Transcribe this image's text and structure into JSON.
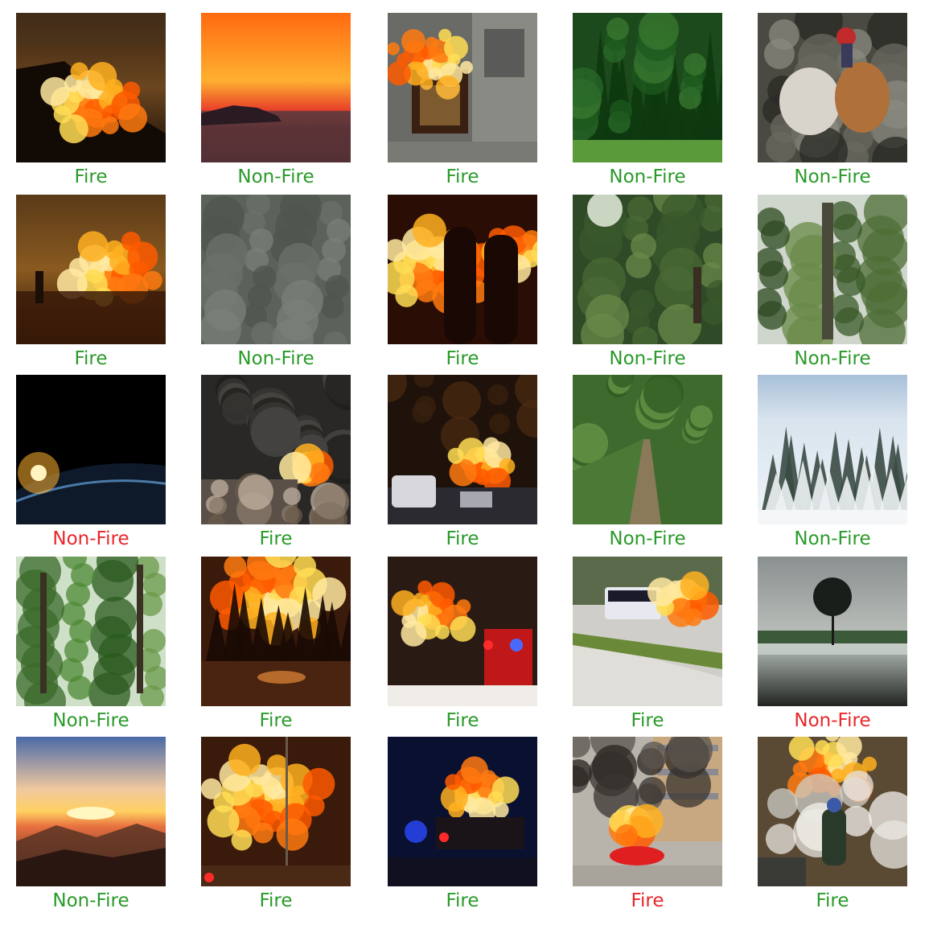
{
  "colors": {
    "correct": "#2a9a2a",
    "incorrect": "#e8262b"
  },
  "grid": [
    {
      "label": "Fire",
      "correct": true,
      "scene": "night-hill-fire"
    },
    {
      "label": "Non-Fire",
      "correct": true,
      "scene": "ocean-sunset"
    },
    {
      "label": "Fire",
      "correct": true,
      "scene": "aerial-building-fire"
    },
    {
      "label": "Non-Fire",
      "correct": true,
      "scene": "forest-edge-grass"
    },
    {
      "label": "Non-Fire",
      "correct": true,
      "scene": "bull-race-mud"
    },
    {
      "label": "Fire",
      "correct": true,
      "scene": "wildfire-person"
    },
    {
      "label": "Non-Fire",
      "correct": true,
      "scene": "rain-gray"
    },
    {
      "label": "Fire",
      "correct": true,
      "scene": "firefighters-silhouette"
    },
    {
      "label": "Non-Fire",
      "correct": true,
      "scene": "sunlit-woods"
    },
    {
      "label": "Non-Fire",
      "correct": true,
      "scene": "green-trees"
    },
    {
      "label": "Non-Fire",
      "correct": false,
      "scene": "earth-sunrise"
    },
    {
      "label": "Fire",
      "correct": true,
      "scene": "city-fire-smoke"
    },
    {
      "label": "Fire",
      "correct": true,
      "scene": "highway-wildfire-night"
    },
    {
      "label": "Non-Fire",
      "correct": true,
      "scene": "forest-path"
    },
    {
      "label": "Non-Fire",
      "correct": true,
      "scene": "snowy-forest"
    },
    {
      "label": "Non-Fire",
      "correct": true,
      "scene": "green-forest"
    },
    {
      "label": "Fire",
      "correct": true,
      "scene": "forest-fire-road"
    },
    {
      "label": "Fire",
      "correct": true,
      "scene": "fire-truck-night"
    },
    {
      "label": "Fire",
      "correct": true,
      "scene": "bus-fire"
    },
    {
      "label": "Non-Fire",
      "correct": false,
      "scene": "lone-tree-field"
    },
    {
      "label": "Non-Fire",
      "correct": true,
      "scene": "mountain-sunset"
    },
    {
      "label": "Fire",
      "correct": true,
      "scene": "house-fire-night"
    },
    {
      "label": "Fire",
      "correct": true,
      "scene": "vehicle-fire-police"
    },
    {
      "label": "Fire",
      "correct": false,
      "scene": "car-fire-street"
    },
    {
      "label": "Fire",
      "correct": true,
      "scene": "firefighter-forest-fire"
    }
  ]
}
